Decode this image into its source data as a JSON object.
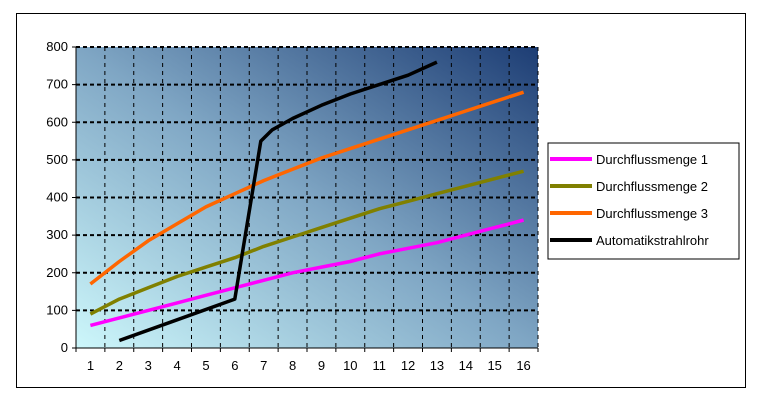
{
  "chart_data": {
    "type": "line",
    "title": "",
    "xlabel": "",
    "ylabel": "",
    "ylim": [
      0,
      800
    ],
    "yticks": [
      0,
      100,
      200,
      300,
      400,
      500,
      600,
      700,
      800
    ],
    "categories": [
      "1",
      "2",
      "3",
      "4",
      "5",
      "6",
      "7",
      "8",
      "9",
      "10",
      "11",
      "12",
      "13",
      "14",
      "15",
      "16"
    ],
    "grid": true,
    "legend_position": "right",
    "series": [
      {
        "name": "Durchflussmenge 1",
        "color": "#ff00ff",
        "points": [
          [
            1,
            60
          ],
          [
            2,
            80
          ],
          [
            3,
            100
          ],
          [
            4,
            120
          ],
          [
            5,
            140
          ],
          [
            6,
            160
          ],
          [
            7,
            180
          ],
          [
            8,
            200
          ],
          [
            9,
            215
          ],
          [
            10,
            230
          ],
          [
            11,
            250
          ],
          [
            12,
            265
          ],
          [
            13,
            280
          ],
          [
            14,
            300
          ],
          [
            15,
            320
          ],
          [
            16,
            340
          ]
        ]
      },
      {
        "name": "Durchflussmenge 2",
        "color": "#808000",
        "points": [
          [
            1,
            90
          ],
          [
            2,
            130
          ],
          [
            3,
            160
          ],
          [
            4,
            190
          ],
          [
            5,
            215
          ],
          [
            6,
            240
          ],
          [
            7,
            270
          ],
          [
            8,
            295
          ],
          [
            9,
            320
          ],
          [
            10,
            345
          ],
          [
            11,
            370
          ],
          [
            12,
            390
          ],
          [
            13,
            410
          ],
          [
            14,
            430
          ],
          [
            15,
            450
          ],
          [
            16,
            470
          ]
        ]
      },
      {
        "name": "Durchflussmenge 3",
        "color": "#ff6600",
        "points": [
          [
            1,
            170
          ],
          [
            2,
            230
          ],
          [
            3,
            285
          ],
          [
            4,
            330
          ],
          [
            5,
            375
          ],
          [
            6,
            410
          ],
          [
            7,
            445
          ],
          [
            8,
            475
          ],
          [
            9,
            505
          ],
          [
            10,
            530
          ],
          [
            11,
            555
          ],
          [
            12,
            580
          ],
          [
            13,
            605
          ],
          [
            14,
            630
          ],
          [
            15,
            655
          ],
          [
            16,
            680
          ]
        ]
      },
      {
        "name": "Automatikstrahlrohr",
        "color": "#000000",
        "points": [
          [
            2,
            20
          ],
          [
            4,
            75
          ],
          [
            6,
            130
          ],
          [
            6.9,
            550
          ],
          [
            7.3,
            580
          ],
          [
            8,
            610
          ],
          [
            9,
            645
          ],
          [
            10,
            675
          ],
          [
            11,
            700
          ],
          [
            12,
            725
          ],
          [
            13,
            760
          ]
        ]
      }
    ]
  }
}
